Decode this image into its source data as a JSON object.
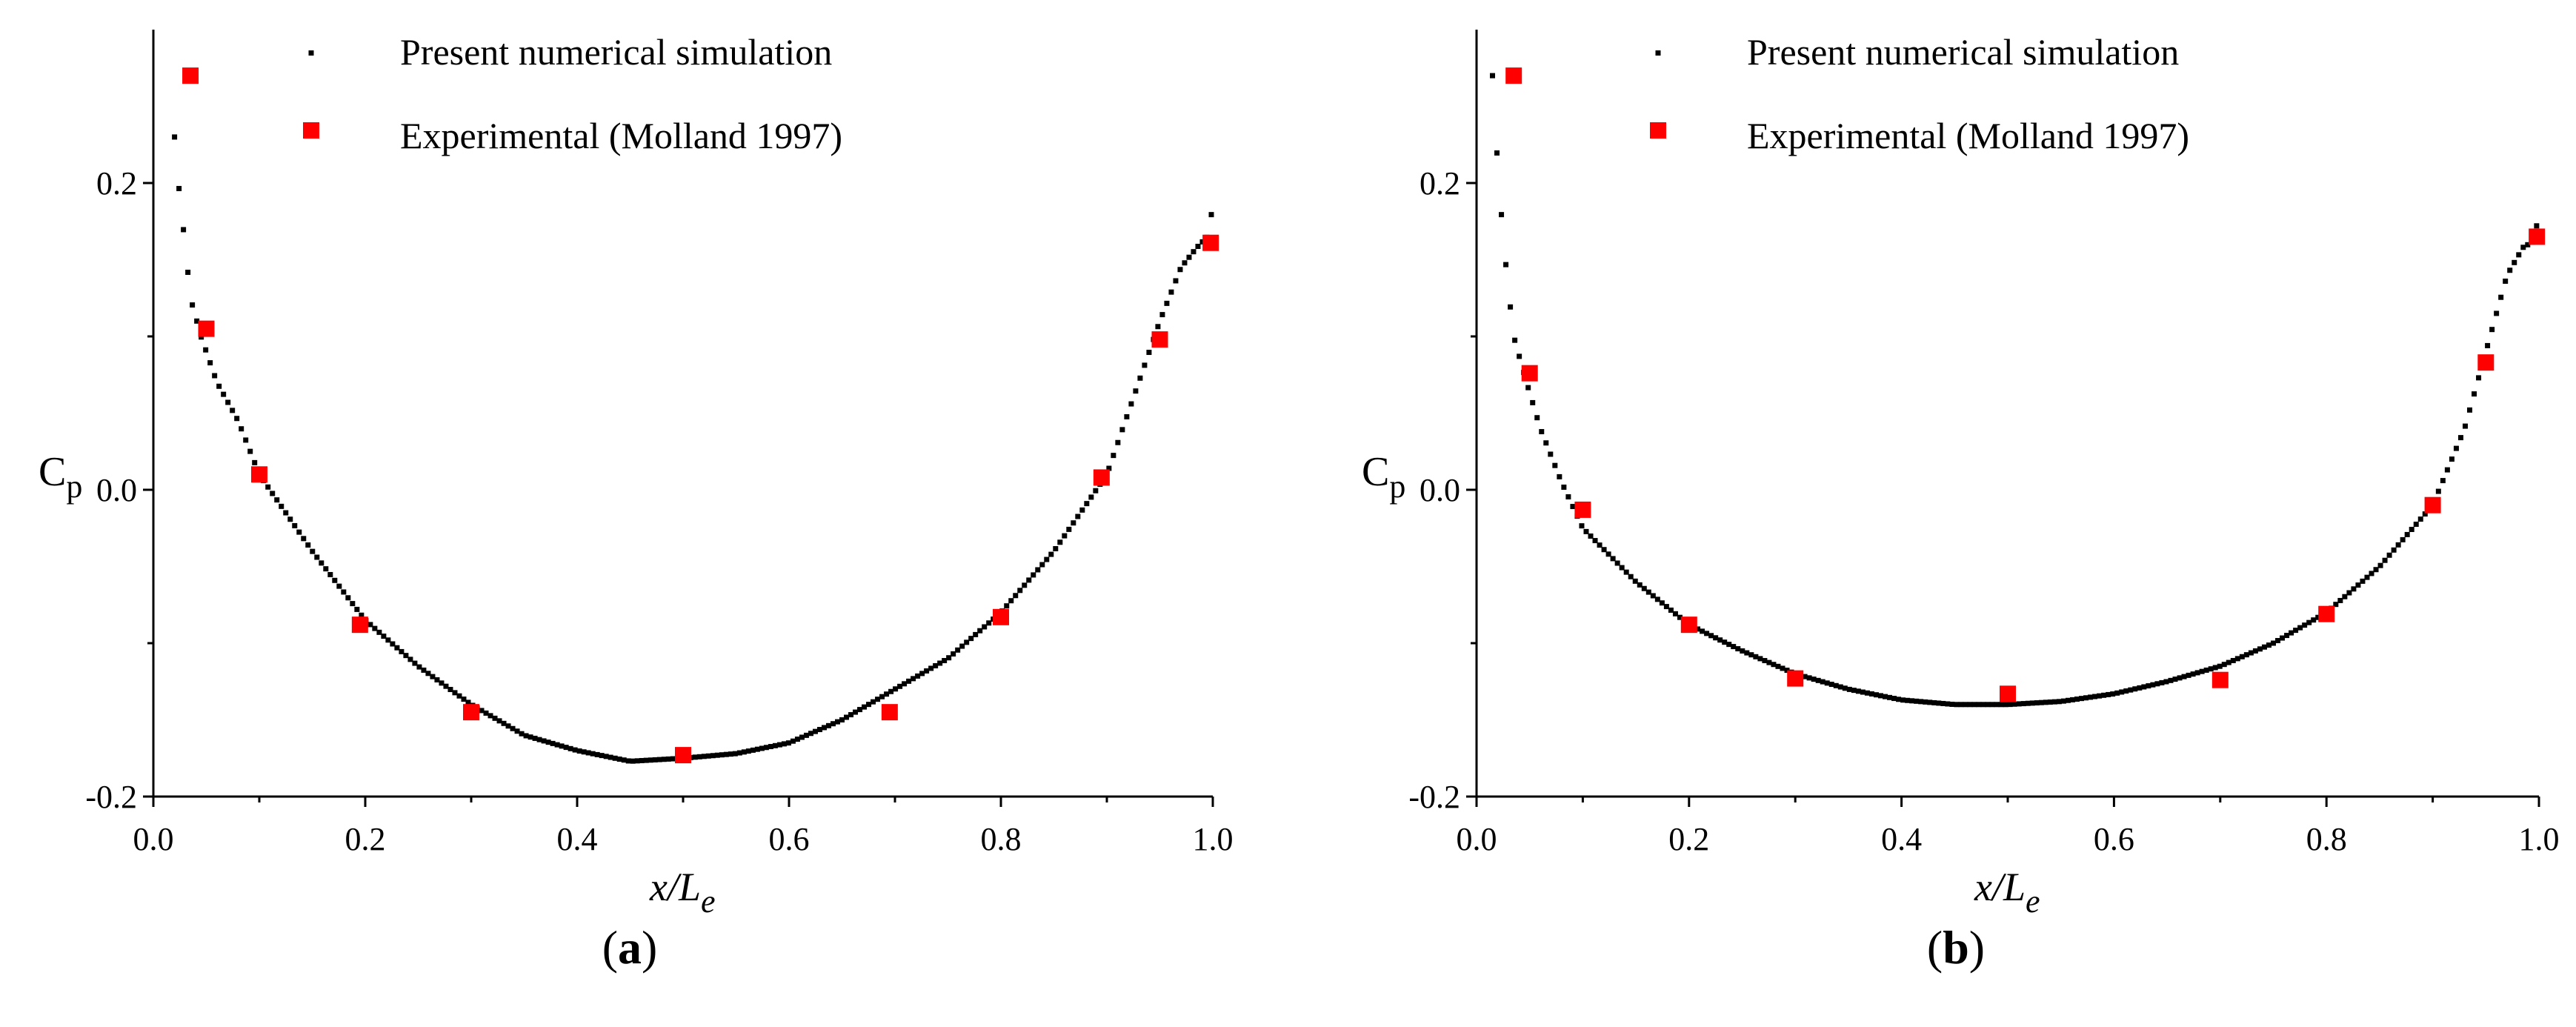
{
  "figure": {
    "panels": [
      "a",
      "b"
    ]
  },
  "chart_data": [
    {
      "type": "scatter",
      "panel_label": "a",
      "title": "",
      "xlabel": "x/L",
      "xlabel_sub": "e",
      "ylabel": "C",
      "ylabel_sub": "p",
      "xlim": [
        0.0,
        1.0
      ],
      "ylim": [
        -0.2,
        0.3
      ],
      "x_ticks": [
        0.0,
        0.2,
        0.4,
        0.6,
        0.8,
        1.0
      ],
      "x_tick_labels": [
        "0.0",
        "0.2",
        "0.4",
        "0.6",
        "0.8",
        "1.0"
      ],
      "y_ticks": [
        -0.2,
        0.0,
        0.2
      ],
      "y_tick_labels": [
        "-0.2",
        "0.0",
        "0.2"
      ],
      "y_minor_ticks": [
        -0.1,
        0.1
      ],
      "grid": false,
      "legend_position": "top-center",
      "series": [
        {
          "name": "Present numerical simulation",
          "marker": "small-square",
          "color": "#000000",
          "curve": [
            [
              0.02,
              0.23
            ],
            [
              0.025,
              0.19
            ],
            [
              0.03,
              0.16
            ],
            [
              0.035,
              0.125
            ],
            [
              0.045,
              0.1
            ],
            [
              0.06,
              0.07
            ],
            [
              0.08,
              0.045
            ],
            [
              0.1,
              0.01
            ],
            [
              0.15,
              -0.04
            ],
            [
              0.2,
              -0.085
            ],
            [
              0.25,
              -0.115
            ],
            [
              0.3,
              -0.14
            ],
            [
              0.35,
              -0.16
            ],
            [
              0.4,
              -0.17
            ],
            [
              0.45,
              -0.177
            ],
            [
              0.5,
              -0.175
            ],
            [
              0.55,
              -0.172
            ],
            [
              0.6,
              -0.165
            ],
            [
              0.65,
              -0.15
            ],
            [
              0.7,
              -0.13
            ],
            [
              0.75,
              -0.11
            ],
            [
              0.8,
              -0.08
            ],
            [
              0.85,
              -0.04
            ],
            [
              0.9,
              0.01
            ],
            [
              0.93,
              0.07
            ],
            [
              0.95,
              0.11
            ],
            [
              0.97,
              0.145
            ],
            [
              0.985,
              0.158
            ],
            [
              0.995,
              0.165
            ],
            [
              1.0,
              0.185
            ]
          ]
        },
        {
          "name": "Experimental (Molland 1997)",
          "marker": "square",
          "color": "#ff0000",
          "points": [
            [
              0.035,
              0.27
            ],
            [
              0.05,
              0.105
            ],
            [
              0.1,
              0.01
            ],
            [
              0.195,
              -0.088
            ],
            [
              0.3,
              -0.145
            ],
            [
              0.5,
              -0.173
            ],
            [
              0.695,
              -0.145
            ],
            [
              0.8,
              -0.083
            ],
            [
              0.895,
              0.008
            ],
            [
              0.95,
              0.098
            ],
            [
              0.998,
              0.161
            ]
          ]
        }
      ]
    },
    {
      "type": "scatter",
      "panel_label": "b",
      "title": "",
      "xlabel": "x/L",
      "xlabel_sub": "e",
      "ylabel": "C",
      "ylabel_sub": "p",
      "xlim": [
        0.0,
        1.0
      ],
      "ylim": [
        -0.2,
        0.3
      ],
      "x_ticks": [
        0.0,
        0.2,
        0.4,
        0.6,
        0.8,
        1.0
      ],
      "x_tick_labels": [
        "0.0",
        "0.2",
        "0.4",
        "0.6",
        "0.8",
        "1.0"
      ],
      "y_ticks": [
        -0.2,
        0.0,
        0.2
      ],
      "y_tick_labels": [
        "-0.2",
        "0.0",
        "0.2"
      ],
      "y_minor_ticks": [
        -0.1,
        0.1
      ],
      "grid": false,
      "legend_position": "top-center",
      "series": [
        {
          "name": "Present numerical simulation",
          "marker": "small-square",
          "color": "#000000",
          "curve": [
            [
              0.015,
              0.27
            ],
            [
              0.02,
              0.21
            ],
            [
              0.025,
              0.165
            ],
            [
              0.03,
              0.13
            ],
            [
              0.035,
              0.1
            ],
            [
              0.045,
              0.075
            ],
            [
              0.06,
              0.04
            ],
            [
              0.08,
              0.005
            ],
            [
              0.1,
              -0.025
            ],
            [
              0.15,
              -0.06
            ],
            [
              0.2,
              -0.088
            ],
            [
              0.25,
              -0.105
            ],
            [
              0.3,
              -0.12
            ],
            [
              0.35,
              -0.13
            ],
            [
              0.4,
              -0.137
            ],
            [
              0.45,
              -0.14
            ],
            [
              0.5,
              -0.14
            ],
            [
              0.55,
              -0.138
            ],
            [
              0.6,
              -0.133
            ],
            [
              0.65,
              -0.125
            ],
            [
              0.7,
              -0.115
            ],
            [
              0.75,
              -0.1
            ],
            [
              0.8,
              -0.08
            ],
            [
              0.85,
              -0.05
            ],
            [
              0.9,
              -0.01
            ],
            [
              0.93,
              0.04
            ],
            [
              0.95,
              0.09
            ],
            [
              0.97,
              0.14
            ],
            [
              0.985,
              0.158
            ],
            [
              0.995,
              0.162
            ],
            [
              1.0,
              0.18
            ]
          ]
        },
        {
          "name": "Experimental (Molland 1997)",
          "marker": "square",
          "color": "#ff0000",
          "points": [
            [
              0.035,
              0.27
            ],
            [
              0.05,
              0.076
            ],
            [
              0.1,
              -0.013
            ],
            [
              0.2,
              -0.088
            ],
            [
              0.3,
              -0.123
            ],
            [
              0.5,
              -0.133
            ],
            [
              0.7,
              -0.124
            ],
            [
              0.8,
              -0.081
            ],
            [
              0.9,
              -0.01
            ],
            [
              0.95,
              0.083
            ],
            [
              0.998,
              0.165
            ]
          ]
        }
      ]
    }
  ]
}
